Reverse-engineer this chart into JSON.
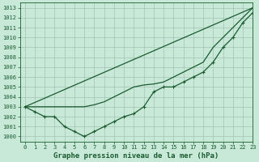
{
  "bg_color": "#c8e8d8",
  "grid_color": "#99bbaa",
  "line_color": "#1a5c30",
  "xlim": [
    -0.5,
    23
  ],
  "ylim": [
    999.5,
    1013.5
  ],
  "yticks": [
    1000,
    1001,
    1002,
    1003,
    1004,
    1005,
    1006,
    1007,
    1008,
    1009,
    1010,
    1011,
    1012,
    1013
  ],
  "xticks": [
    0,
    1,
    2,
    3,
    4,
    5,
    6,
    7,
    8,
    9,
    10,
    11,
    12,
    13,
    14,
    15,
    16,
    17,
    18,
    19,
    20,
    21,
    22,
    23
  ],
  "series": [
    {
      "x": [
        0,
        23
      ],
      "y": [
        1003,
        1013
      ],
      "marker": false,
      "lw": 0.9
    },
    {
      "x": [
        0,
        1,
        2,
        3,
        4,
        5,
        6,
        7,
        8,
        9,
        10,
        11,
        12,
        13,
        14,
        15,
        16,
        17,
        18,
        19,
        20,
        21,
        22,
        23
      ],
      "y": [
        1003,
        1003,
        1003,
        1003,
        1003,
        1003,
        1003,
        1003.2,
        1003.5,
        1004,
        1004.5,
        1005,
        1005.2,
        1005.3,
        1005.5,
        1006,
        1006.5,
        1007,
        1007.5,
        1009,
        1010,
        1011,
        1012,
        1013
      ],
      "marker": false,
      "lw": 0.9
    },
    {
      "x": [
        0,
        1,
        2,
        3,
        4,
        5,
        6,
        7,
        8,
        9,
        10,
        11,
        12,
        13,
        14,
        15,
        16,
        17,
        18,
        19,
        20,
        21,
        22,
        23
      ],
      "y": [
        1003,
        1002.5,
        1002,
        1002,
        1001,
        1000.5,
        1000,
        1000.5,
        1001,
        1001.5,
        1002,
        1002.3,
        1003,
        1004.5,
        1005,
        1005,
        1005.5,
        1006,
        1006.5,
        1007.5,
        1009,
        1010,
        1011.5,
        1012.5
      ],
      "marker": true,
      "lw": 0.9
    }
  ],
  "xlabel": "Graphe pression niveau de la mer (hPa)",
  "tick_fontsize": 5.0,
  "xlabel_fontsize": 6.5
}
